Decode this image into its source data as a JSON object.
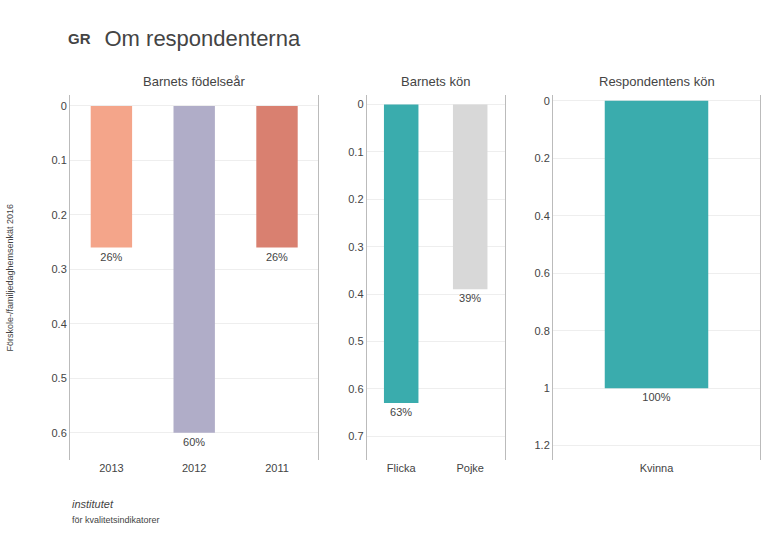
{
  "title": "Om respondenterna",
  "annotations": [
    "Förskole-/familjedaghemsenkät 2016",
    "GR",
    "institutet",
    "för kvalitetsindikatorer"
  ],
  "chart_data": [
    {
      "type": "bar",
      "title": "Barnets födelseår",
      "categories": [
        "2013",
        "2012",
        "2011"
      ],
      "values": [
        0.26,
        0.6,
        0.26
      ],
      "value_labels": [
        "26%",
        "60%",
        "26%"
      ],
      "colors": [
        "#f4a58a",
        "#b0adc8",
        "#d98070"
      ],
      "ylim": [
        0.65,
        -0.02
      ],
      "yticks": [
        0,
        0.1,
        0.2,
        0.3,
        0.4,
        0.5,
        0.6
      ],
      "grid": true,
      "data_labels": true
    },
    {
      "type": "bar",
      "title": "Barnets kön",
      "categories": [
        "Flicka",
        "Pojke"
      ],
      "values": [
        0.63,
        0.39
      ],
      "value_labels": [
        "63%",
        "39%"
      ],
      "colors": [
        "#3aacad",
        "#d8d8d8"
      ],
      "ylim": [
        0.75,
        -0.02
      ],
      "yticks": [
        0,
        0.1,
        0.2,
        0.3,
        0.4,
        0.5,
        0.6,
        0.7
      ],
      "grid": true,
      "data_labels": true
    },
    {
      "type": "bar",
      "title": "Respondentens kön",
      "categories": [
        "Kvinna"
      ],
      "values": [
        1.0
      ],
      "value_labels": [
        "100%"
      ],
      "colors": [
        "#3aacad"
      ],
      "ylim": [
        1.25,
        -0.02
      ],
      "yticks": [
        0,
        0.2,
        0.4,
        0.6,
        0.8,
        1.0,
        1.2
      ],
      "grid": true,
      "data_labels": true
    }
  ]
}
